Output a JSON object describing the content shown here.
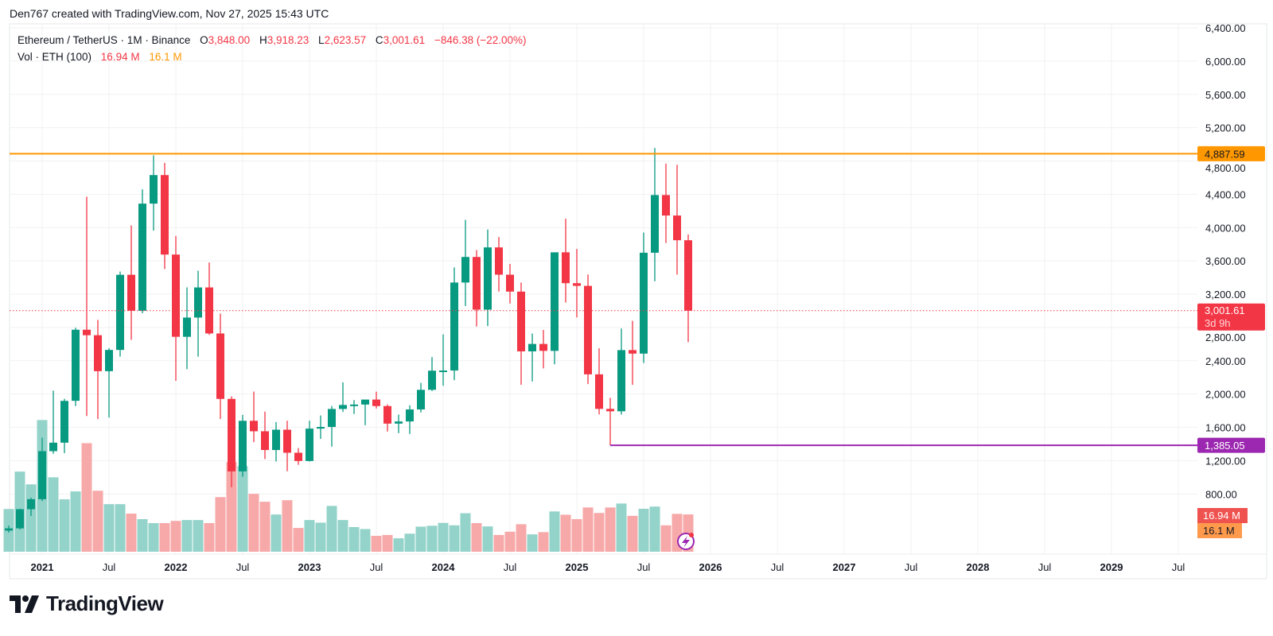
{
  "header": {
    "credit": "Den767 created with TradingView.com, Nov 27, 2025 15:43 UTC"
  },
  "legend": {
    "symbol": "Ethereum / TetherUS · 1M · Binance",
    "o_label": "O",
    "o_value": "3,848.00",
    "h_label": "H",
    "h_value": "3,918.23",
    "l_label": "L",
    "l_value": "2,623.57",
    "c_label": "C",
    "c_value": "3,001.61",
    "change": "−846.38 (−22.00%)",
    "vol_label": "Vol · ETH (100)",
    "vol_value": "16.94 M",
    "vol_ma_value": "16.1 M"
  },
  "colors": {
    "up": "#089981",
    "down": "#f23645",
    "vol_up": "#93d3ca",
    "vol_down": "#f7a8a8",
    "resistance": "#ff9800",
    "support": "#9c27b0",
    "vol_ma": "#ff9a4d"
  },
  "logo": {
    "text": "TradingView"
  },
  "chart_data": {
    "type": "candlestick",
    "interval": "1M",
    "price_axis": {
      "ticks": [
        "800.00",
        "1,200.00",
        "1,600.00",
        "2,000.00",
        "2,400.00",
        "2,800.00",
        "3,200.00",
        "3,600.00",
        "4,000.00",
        "4,400.00",
        "4,800.00",
        "5,200.00",
        "5,600.00",
        "6,000.00",
        "6,400.00"
      ],
      "tick_values": [
        800,
        1200,
        1600,
        2000,
        2400,
        2800,
        3200,
        3600,
        4000,
        4400,
        4800,
        5200,
        5600,
        6000,
        6400
      ],
      "range": [
        800,
        6400
      ]
    },
    "time_axis": {
      "ticks": [
        {
          "label": "2021",
          "month": "2021-01",
          "year": true
        },
        {
          "label": "Jul",
          "month": "2021-07"
        },
        {
          "label": "2022",
          "month": "2022-01",
          "year": true
        },
        {
          "label": "Jul",
          "month": "2022-07"
        },
        {
          "label": "2023",
          "month": "2023-01",
          "year": true
        },
        {
          "label": "Jul",
          "month": "2023-07"
        },
        {
          "label": "2024",
          "month": "2024-01",
          "year": true
        },
        {
          "label": "Jul",
          "month": "2024-07"
        },
        {
          "label": "2025",
          "month": "2025-01",
          "year": true
        },
        {
          "label": "Jul",
          "month": "2025-07"
        },
        {
          "label": "2026",
          "month": "2026-01",
          "year": true
        },
        {
          "label": "Jul",
          "month": "2026-07"
        },
        {
          "label": "2027",
          "month": "2027-01",
          "year": true
        },
        {
          "label": "Jul",
          "month": "2027-07"
        },
        {
          "label": "2028",
          "month": "2028-01",
          "year": true
        },
        {
          "label": "Jul",
          "month": "2028-07"
        },
        {
          "label": "2029",
          "month": "2029-01",
          "year": true
        },
        {
          "label": "Jul",
          "month": "2029-07"
        }
      ]
    },
    "horizontal_lines": [
      {
        "price": 4887.59,
        "label": "4,887.59",
        "color": "#ff9800",
        "from": "start"
      },
      {
        "price": 1385.05,
        "label": "1,385.05",
        "color": "#9c27b0",
        "from": "2025-04"
      }
    ],
    "last_price": {
      "price": 3001.61,
      "label": "3,001.61",
      "countdown": "3d 9h"
    },
    "volume_labels": {
      "volume": "16.94 M",
      "volume_ma": "16.1 M"
    },
    "candles": [
      {
        "t": "2020-10",
        "o": 359.8,
        "h": 420,
        "l": 335,
        "c": 386.5,
        "v": 19.4
      },
      {
        "t": "2020-11",
        "o": 386.6,
        "h": 622,
        "l": 374,
        "c": 616.7,
        "v": 36.4
      },
      {
        "t": "2020-12",
        "o": 616.7,
        "h": 755,
        "l": 535,
        "c": 737,
        "v": 30.6
      },
      {
        "t": "2021-01",
        "o": 737,
        "h": 1476,
        "l": 714,
        "c": 1314,
        "v": 59.8
      },
      {
        "t": "2021-02",
        "o": 1314,
        "h": 2041,
        "l": 1283,
        "c": 1416,
        "v": 33.8
      },
      {
        "t": "2021-03",
        "o": 1416,
        "h": 1943,
        "l": 1290,
        "c": 1918,
        "v": 23.8
      },
      {
        "t": "2021-04",
        "o": 1919,
        "h": 2797,
        "l": 1856,
        "c": 2773,
        "v": 27.4
      },
      {
        "t": "2021-05",
        "o": 2773,
        "h": 4372,
        "l": 1737,
        "c": 2707,
        "v": 49.3
      },
      {
        "t": "2021-06",
        "o": 2707,
        "h": 2891,
        "l": 1700,
        "c": 2275,
        "v": 27.7
      },
      {
        "t": "2021-07",
        "o": 2275,
        "h": 2551,
        "l": 1718,
        "c": 2530,
        "v": 21.6
      },
      {
        "t": "2021-08",
        "o": 2530,
        "h": 3472,
        "l": 2450,
        "c": 3433,
        "v": 21.6
      },
      {
        "t": "2021-09",
        "o": 3433,
        "h": 4027,
        "l": 2651,
        "c": 3001,
        "v": 17.3
      },
      {
        "t": "2021-10",
        "o": 3001,
        "h": 4460,
        "l": 2971,
        "c": 4288,
        "v": 14.8
      },
      {
        "t": "2021-11",
        "o": 4288,
        "h": 4868,
        "l": 3964,
        "c": 4631,
        "v": 13.0
      },
      {
        "t": "2021-12",
        "o": 4631,
        "h": 4778,
        "l": 3503,
        "c": 3676,
        "v": 13.0
      },
      {
        "t": "2022-01",
        "o": 3676,
        "h": 3900,
        "l": 2159,
        "c": 2688,
        "v": 14.0
      },
      {
        "t": "2022-02",
        "o": 2688,
        "h": 3282,
        "l": 2300,
        "c": 2919,
        "v": 14.4
      },
      {
        "t": "2022-03",
        "o": 2919,
        "h": 3482,
        "l": 2450,
        "c": 3281,
        "v": 14.4
      },
      {
        "t": "2022-04",
        "o": 3281,
        "h": 3580,
        "l": 2711,
        "c": 2728,
        "v": 13.0
      },
      {
        "t": "2022-05",
        "o": 2728,
        "h": 2966,
        "l": 1700,
        "c": 1942,
        "v": 24.8
      },
      {
        "t": "2022-06",
        "o": 1942,
        "h": 1972,
        "l": 881,
        "c": 1071,
        "v": 40.7
      },
      {
        "t": "2022-07",
        "o": 1071,
        "h": 1750,
        "l": 1007,
        "c": 1679,
        "v": 38.9
      },
      {
        "t": "2022-08",
        "o": 1679,
        "h": 2030,
        "l": 1422,
        "c": 1553,
        "v": 26.3
      },
      {
        "t": "2022-09",
        "o": 1553,
        "h": 1789,
        "l": 1220,
        "c": 1328,
        "v": 22.7
      },
      {
        "t": "2022-10",
        "o": 1328,
        "h": 1664,
        "l": 1190,
        "c": 1572,
        "v": 16.9
      },
      {
        "t": "2022-11",
        "o": 1572,
        "h": 1680,
        "l": 1073,
        "c": 1295,
        "v": 23.4
      },
      {
        "t": "2022-12",
        "o": 1295,
        "h": 1352,
        "l": 1150,
        "c": 1196,
        "v": 10.8
      },
      {
        "t": "2023-01",
        "o": 1196,
        "h": 1680,
        "l": 1190,
        "c": 1585,
        "v": 14.4
      },
      {
        "t": "2023-02",
        "o": 1585,
        "h": 1743,
        "l": 1461,
        "c": 1605,
        "v": 13.2
      },
      {
        "t": "2023-03",
        "o": 1605,
        "h": 1857,
        "l": 1368,
        "c": 1821,
        "v": 20.8
      },
      {
        "t": "2023-04",
        "o": 1821,
        "h": 2141,
        "l": 1785,
        "c": 1869,
        "v": 14.4
      },
      {
        "t": "2023-05",
        "o": 1869,
        "h": 1928,
        "l": 1760,
        "c": 1874,
        "v": 11.2
      },
      {
        "t": "2023-06",
        "o": 1874,
        "h": 1929,
        "l": 1626,
        "c": 1934,
        "v": 10.3
      },
      {
        "t": "2023-07",
        "o": 1934,
        "h": 2029,
        "l": 1826,
        "c": 1856,
        "v": 7.2
      },
      {
        "t": "2023-08",
        "o": 1856,
        "h": 1875,
        "l": 1550,
        "c": 1645,
        "v": 7.6
      },
      {
        "t": "2023-09",
        "o": 1645,
        "h": 1754,
        "l": 1531,
        "c": 1671,
        "v": 6.1
      },
      {
        "t": "2023-10",
        "o": 1671,
        "h": 1865,
        "l": 1521,
        "c": 1815,
        "v": 8.2
      },
      {
        "t": "2023-11",
        "o": 1815,
        "h": 2135,
        "l": 1779,
        "c": 2051,
        "v": 11.4
      },
      {
        "t": "2023-12",
        "o": 2051,
        "h": 2445,
        "l": 2037,
        "c": 2281,
        "v": 11.8
      },
      {
        "t": "2024-01",
        "o": 2281,
        "h": 2717,
        "l": 2100,
        "c": 2283,
        "v": 13.1
      },
      {
        "t": "2024-02",
        "o": 2283,
        "h": 3522,
        "l": 2166,
        "c": 3340,
        "v": 12.0
      },
      {
        "t": "2024-03",
        "o": 3340,
        "h": 4093,
        "l": 3057,
        "c": 3647,
        "v": 17.5
      },
      {
        "t": "2024-04",
        "o": 3647,
        "h": 3730,
        "l": 2812,
        "c": 3014,
        "v": 13.0
      },
      {
        "t": "2024-05",
        "o": 3014,
        "h": 3977,
        "l": 2817,
        "c": 3762,
        "v": 11.5
      },
      {
        "t": "2024-06",
        "o": 3762,
        "h": 3887,
        "l": 3231,
        "c": 3434,
        "v": 7.6
      },
      {
        "t": "2024-07",
        "o": 3434,
        "h": 3563,
        "l": 3088,
        "c": 3231,
        "v": 9.1
      },
      {
        "t": "2024-08",
        "o": 3231,
        "h": 3340,
        "l": 2111,
        "c": 2513,
        "v": 12.5
      },
      {
        "t": "2024-09",
        "o": 2513,
        "h": 2728,
        "l": 2151,
        "c": 2602,
        "v": 7.9
      },
      {
        "t": "2024-10",
        "o": 2602,
        "h": 2770,
        "l": 2308,
        "c": 2519,
        "v": 8.9
      },
      {
        "t": "2024-11",
        "o": 2519,
        "h": 3682,
        "l": 2357,
        "c": 3703,
        "v": 18.3
      },
      {
        "t": "2024-12",
        "o": 3703,
        "h": 4107,
        "l": 3100,
        "c": 3332,
        "v": 16.8
      },
      {
        "t": "2025-01",
        "o": 3332,
        "h": 3744,
        "l": 2920,
        "c": 3300,
        "v": 14.8
      },
      {
        "t": "2025-02",
        "o": 3300,
        "h": 3437,
        "l": 2120,
        "c": 2237,
        "v": 20.1
      },
      {
        "t": "2025-03",
        "o": 2237,
        "h": 2550,
        "l": 1755,
        "c": 1822,
        "v": 17.6
      },
      {
        "t": "2025-04",
        "o": 1822,
        "h": 1955,
        "l": 1385,
        "c": 1793,
        "v": 20.1
      },
      {
        "t": "2025-05",
        "o": 1793,
        "h": 2788,
        "l": 1753,
        "c": 2528,
        "v": 21.9
      },
      {
        "t": "2025-06",
        "o": 2528,
        "h": 2880,
        "l": 2111,
        "c": 2486,
        "v": 16.3
      },
      {
        "t": "2025-07",
        "o": 2486,
        "h": 3941,
        "l": 2373,
        "c": 3698,
        "v": 19.5
      },
      {
        "t": "2025-08",
        "o": 3698,
        "h": 4956,
        "l": 3355,
        "c": 4391,
        "v": 20.5
      },
      {
        "t": "2025-09",
        "o": 4391,
        "h": 4769,
        "l": 3815,
        "c": 4145,
        "v": 12.0
      },
      {
        "t": "2025-10",
        "o": 4145,
        "h": 4755,
        "l": 3435,
        "c": 3848,
        "v": 17.2
      },
      {
        "t": "2025-11",
        "o": 3848,
        "h": 3918.23,
        "l": 2623.57,
        "c": 3001.61,
        "v": 16.94
      }
    ]
  }
}
